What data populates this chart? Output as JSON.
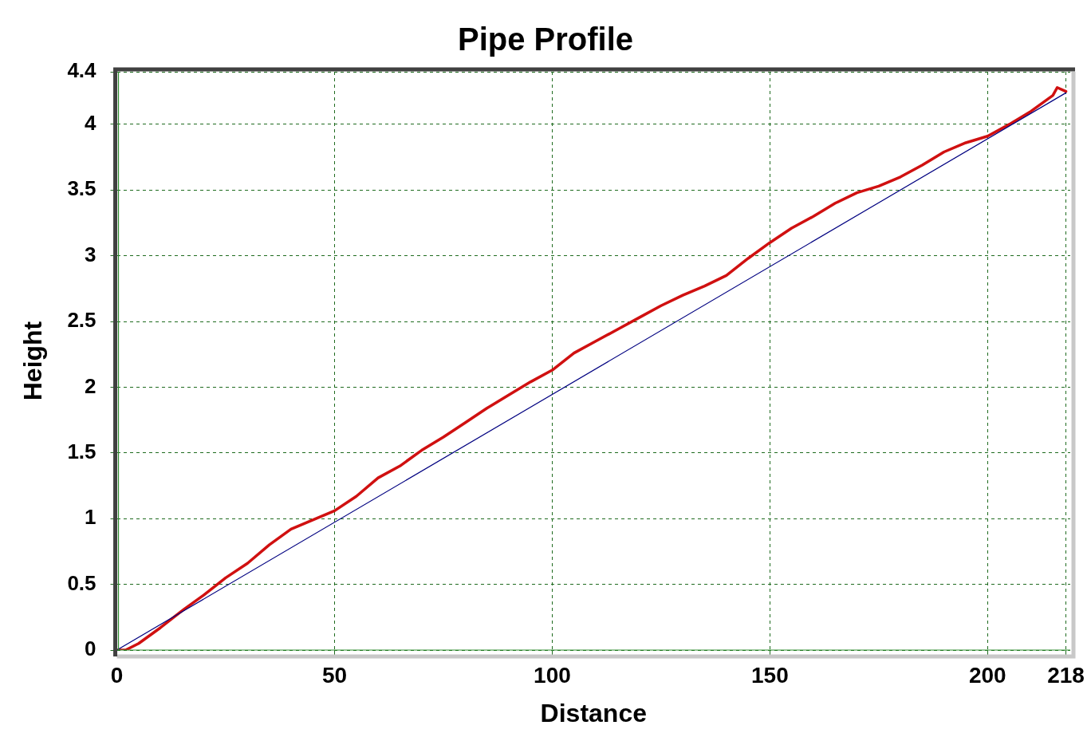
{
  "chart_data": {
    "type": "line",
    "title": "Pipe Profile",
    "xlabel": "Distance",
    "ylabel": "Height",
    "xlim": [
      0,
      219
    ],
    "ylim": [
      0,
      4.4
    ],
    "xticks": [
      0,
      50,
      100,
      150,
      200,
      218
    ],
    "yticks": [
      0,
      0.5,
      1,
      1.5,
      2,
      2.5,
      3,
      3.5,
      4,
      4.4
    ],
    "grid": true,
    "marker": "none",
    "series": [
      {
        "color": "#000080",
        "x": [
          0,
          218
        ],
        "values": [
          0,
          4.24
        ]
      },
      {
        "color": "#d01010",
        "x": [
          0,
          2,
          5,
          10,
          15,
          20,
          25,
          30,
          35,
          40,
          45,
          50,
          55,
          60,
          65,
          70,
          75,
          80,
          85,
          90,
          95,
          100,
          105,
          110,
          115,
          120,
          125,
          130,
          135,
          140,
          145,
          150,
          155,
          160,
          165,
          170,
          175,
          180,
          185,
          190,
          195,
          200,
          205,
          210,
          215,
          216,
          218
        ],
        "values": [
          0,
          0,
          0.05,
          0.17,
          0.3,
          0.42,
          0.55,
          0.66,
          0.8,
          0.92,
          0.99,
          1.06,
          1.17,
          1.31,
          1.4,
          1.52,
          1.62,
          1.73,
          1.84,
          1.94,
          2.04,
          2.13,
          2.26,
          2.35,
          2.44,
          2.53,
          2.62,
          2.7,
          2.77,
          2.85,
          2.98,
          3.1,
          3.21,
          3.3,
          3.4,
          3.48,
          3.53,
          3.6,
          3.69,
          3.79,
          3.86,
          3.91,
          4.0,
          4.1,
          4.22,
          4.28,
          4.25
        ]
      }
    ]
  }
}
